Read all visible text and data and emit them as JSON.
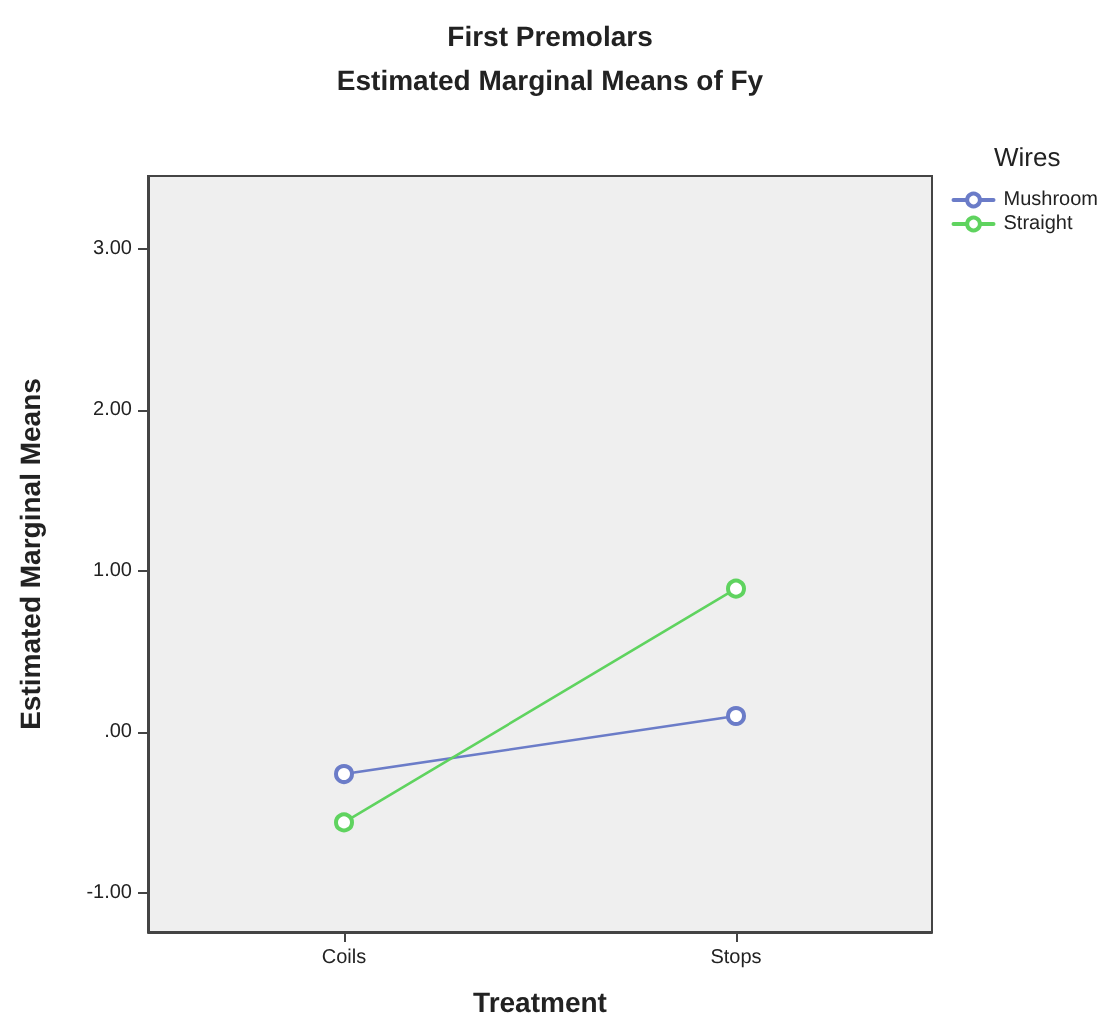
{
  "chart_data": {
    "type": "line",
    "title": "First Premolars",
    "subtitle": "Estimated Marginal Means of Fy",
    "xlabel": "Treatment",
    "ylabel": "Estimated Marginal Means",
    "legend_title": "Wires",
    "categories": [
      "Coils",
      "Stops"
    ],
    "series": [
      {
        "name": "Mushroom",
        "color": "#6b7cc8",
        "values": [
          -0.26,
          0.1
        ]
      },
      {
        "name": "Straight",
        "color": "#5fd35f",
        "values": [
          -0.56,
          0.89
        ]
      }
    ],
    "ylim": [
      -1.24,
      3.45
    ],
    "yticks": [
      {
        "value": -1,
        "label": "-1.00"
      },
      {
        "value": 0,
        "label": ".00"
      },
      {
        "value": 1,
        "label": "1.00"
      },
      {
        "value": 2,
        "label": "2.00"
      },
      {
        "value": 3,
        "label": "3.00"
      }
    ],
    "grid": false,
    "legend": "top right",
    "marker": "circle",
    "line_style": "solid"
  }
}
